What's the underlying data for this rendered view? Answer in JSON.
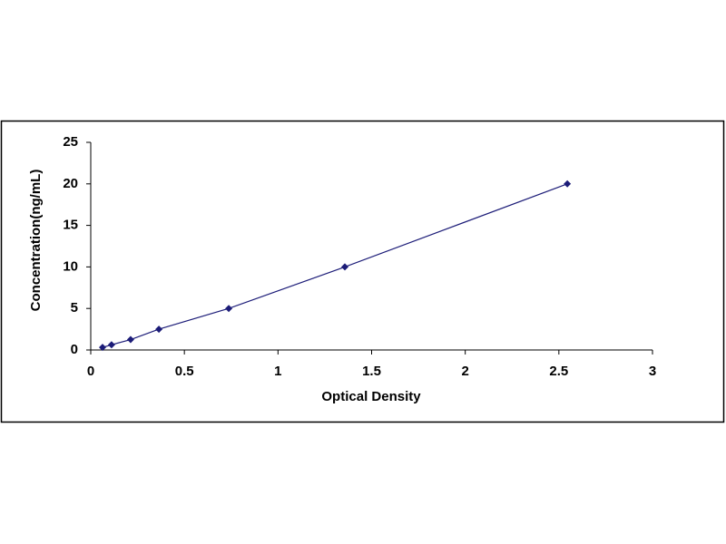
{
  "chart_data": {
    "type": "scatter",
    "x_label": "Optical Density",
    "y_label": "Concentration(ng/mL)",
    "x": [
      0.063,
      0.111,
      0.213,
      0.364,
      0.737,
      1.357,
      2.545
    ],
    "values": [
      0.312,
      0.625,
      1.25,
      2.5,
      5,
      10,
      20
    ],
    "color": "#1c1c78",
    "connect": true,
    "xlim": [
      0,
      3
    ],
    "xticks": [
      0,
      0.5,
      1,
      1.5,
      2,
      2.5,
      3
    ],
    "ylim": [
      0,
      25
    ],
    "yticks": [
      0,
      5,
      10,
      15,
      20,
      25
    ],
    "grid": false
  }
}
